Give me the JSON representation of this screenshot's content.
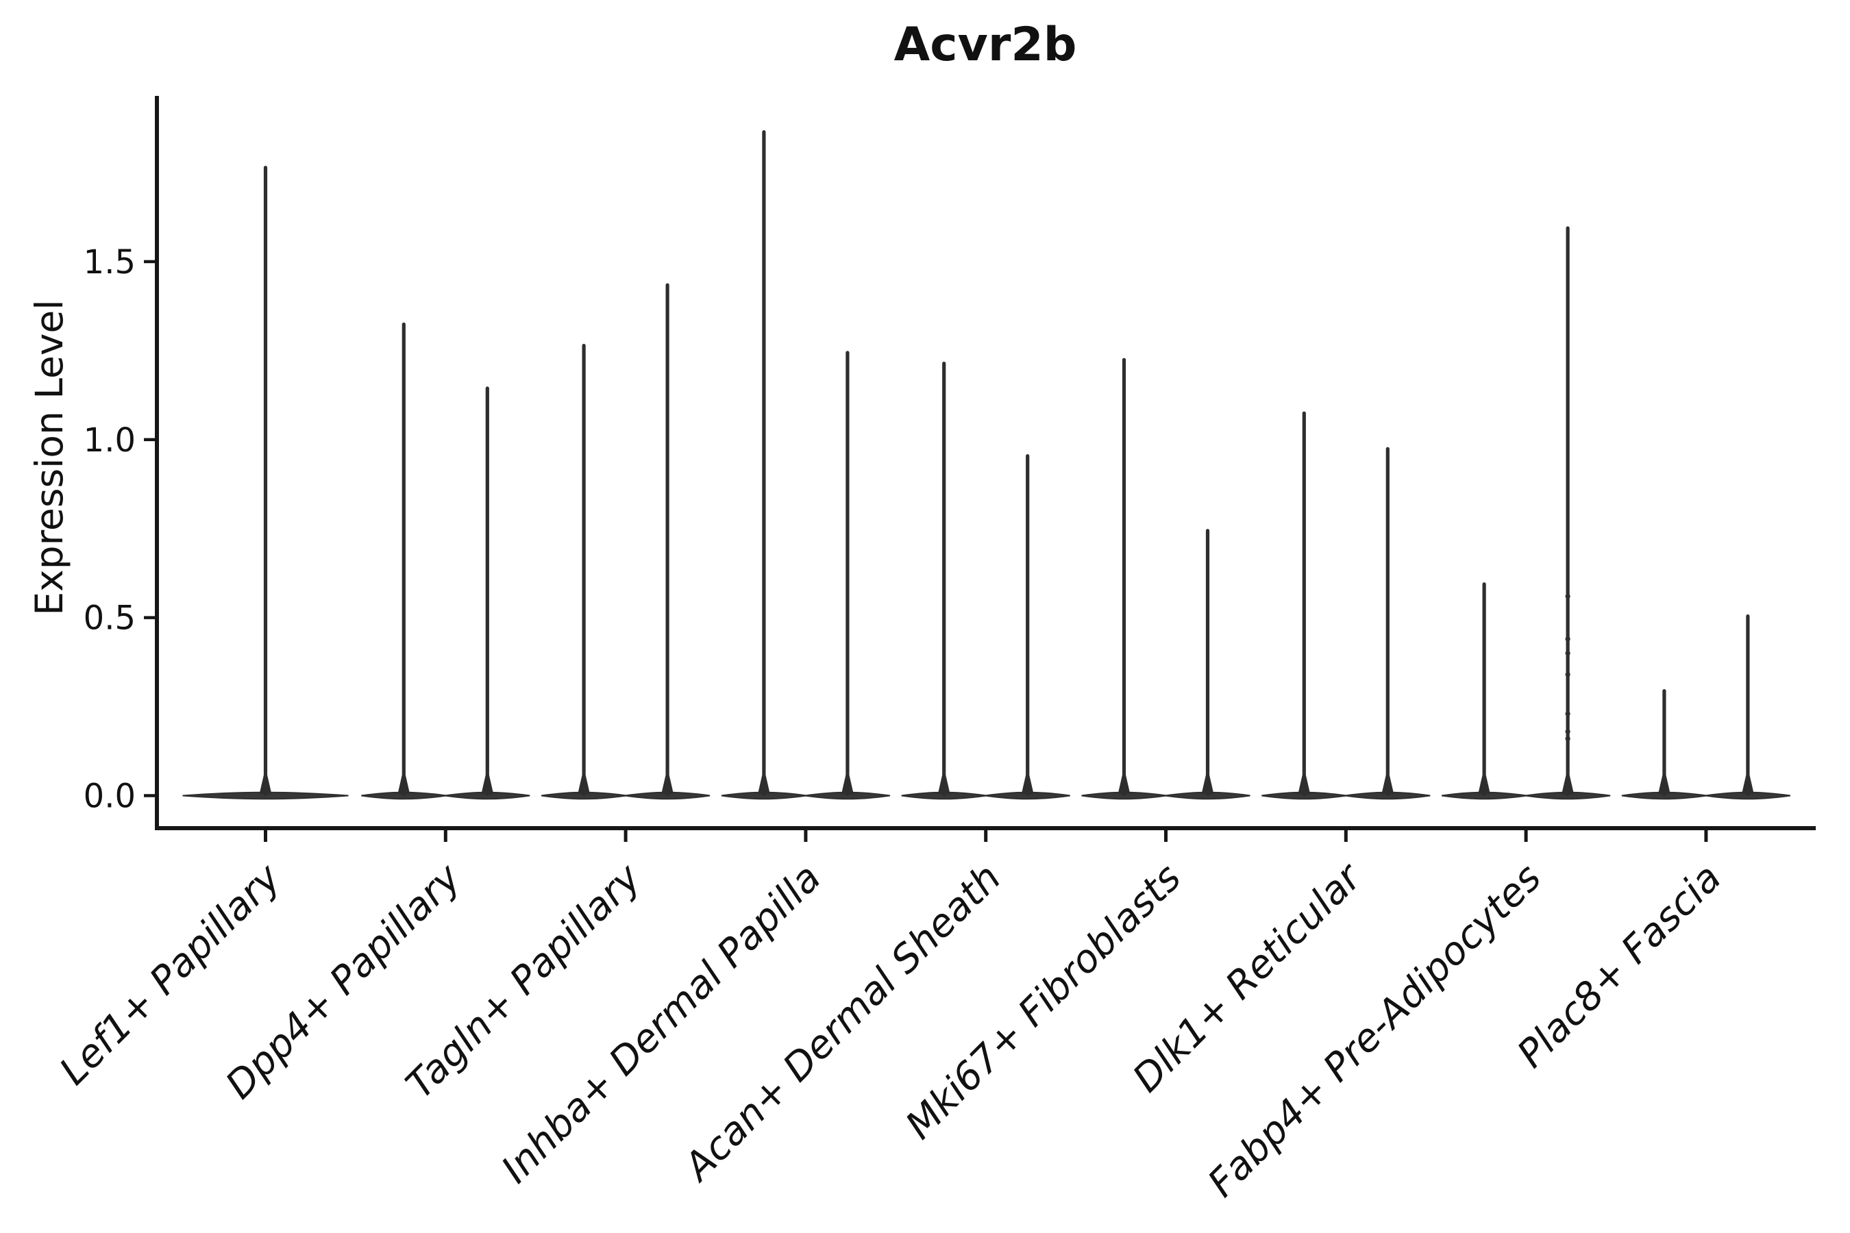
{
  "figure": {
    "title": "Acvr2b",
    "ylabel": "Expression Level",
    "background_color": "#ffffff",
    "ink_color": "#2e2e2e",
    "violin_fill_color": "#383838",
    "spine_color": "#161616",
    "text_color": "#111111"
  },
  "chart_data": {
    "type": "violin",
    "title": "Acvr2b",
    "xlabel": "",
    "ylabel": "Expression Level",
    "ylim": [
      -0.09,
      1.96
    ],
    "ytick_values": [
      0,
      0.5,
      1.0,
      1.5
    ],
    "ytick_labels": [
      "0.0",
      "0.5",
      "1.0",
      "1.5"
    ],
    "grid": false,
    "legend": null,
    "xtick_label_style": "italic, rotated 45deg, right-anchored",
    "description": "Violin plot of Acvr2b expression; each violin is a thin spike rising from a wide flat density at expression 0. First category has a single violin; all others contain two violins.",
    "categories": [
      {
        "label": "Lef1+ Papillary",
        "violin_maxima": [
          1.77
        ],
        "jitter_dots": [
          []
        ]
      },
      {
        "label": "Dpp4+ Papillary",
        "violin_maxima": [
          1.33,
          1.15
        ],
        "jitter_dots": [
          [],
          []
        ]
      },
      {
        "label": "Tagln+ Papillary",
        "violin_maxima": [
          1.27,
          1.44
        ],
        "jitter_dots": [
          [],
          []
        ]
      },
      {
        "label": "Inhba+ Dermal Papilla",
        "violin_maxima": [
          1.87,
          1.25
        ],
        "jitter_dots": [
          [],
          []
        ]
      },
      {
        "label": "Acan+ Dermal Sheath",
        "violin_maxima": [
          1.22,
          0.96
        ],
        "jitter_dots": [
          [],
          []
        ]
      },
      {
        "label": "Mki67+ Fibroblasts",
        "violin_maxima": [
          1.23,
          0.75
        ],
        "jitter_dots": [
          [],
          []
        ]
      },
      {
        "label": "Dlk1+ Reticular",
        "violin_maxima": [
          1.08,
          0.98
        ],
        "jitter_dots": [
          [],
          []
        ]
      },
      {
        "label": "Fabp4+ Pre-Adipocytes",
        "violin_maxima": [
          0.6,
          1.6
        ],
        "jitter_dots": [
          [],
          [
            0.16,
            0.18,
            0.23,
            0.34,
            0.4,
            0.44,
            0.56
          ]
        ]
      },
      {
        "label": "Plac8+ Fascia",
        "violin_maxima": [
          0.3,
          0.51
        ],
        "jitter_dots": [
          [],
          []
        ]
      }
    ]
  }
}
